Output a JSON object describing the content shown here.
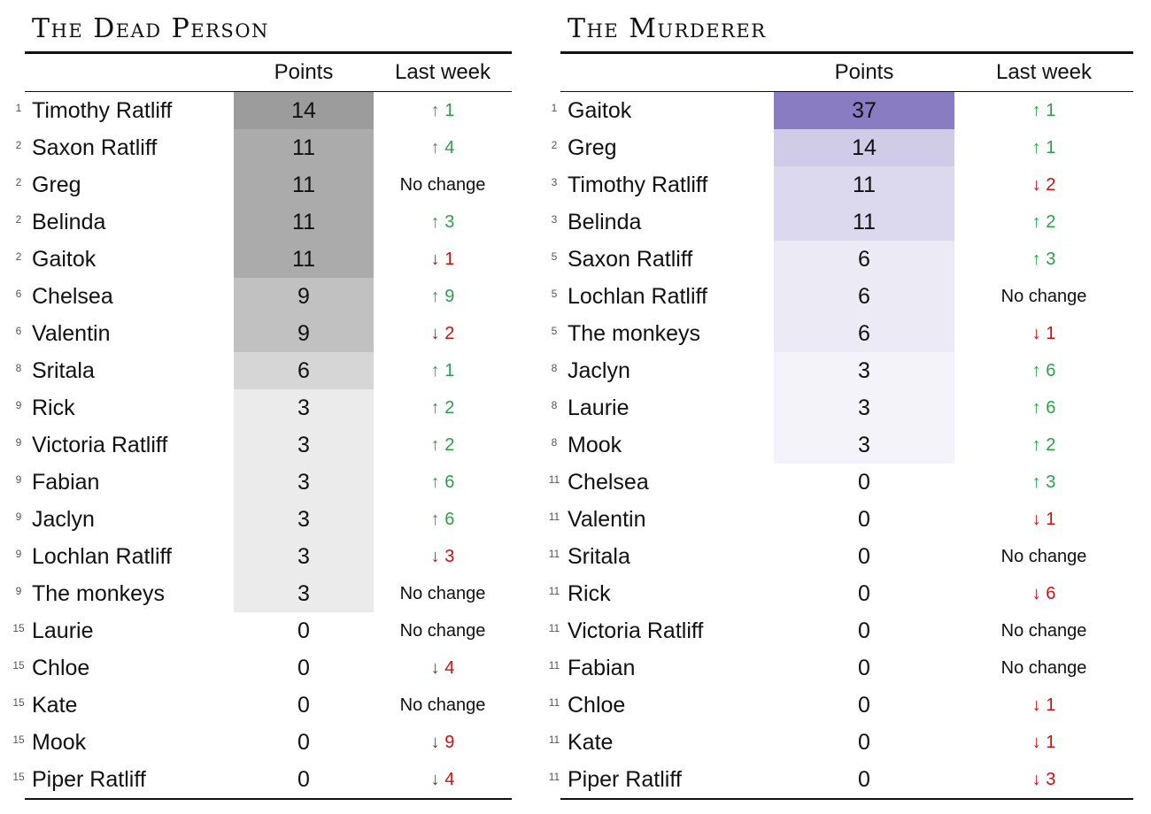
{
  "left": {
    "title": "The Dead Person",
    "col_points": "Points",
    "col_last_week": "Last week",
    "rows": [
      {
        "rank": "1",
        "name": "Timothy Ratliff",
        "points": "14",
        "change": "↑ 1",
        "dir": "up",
        "shade": "#9c9c9c"
      },
      {
        "rank": "2",
        "name": "Saxon Ratliff",
        "points": "11",
        "change": "↑ 4",
        "dir": "up",
        "shade": "#ababab"
      },
      {
        "rank": "2",
        "name": "Greg",
        "points": "11",
        "change": "No change",
        "dir": "same",
        "shade": "#ababab"
      },
      {
        "rank": "2",
        "name": "Belinda",
        "points": "11",
        "change": "↑ 3",
        "dir": "up",
        "shade": "#ababab"
      },
      {
        "rank": "2",
        "name": "Gaitok",
        "points": "11",
        "change": "↓ 1",
        "dir": "down",
        "shade": "#ababab"
      },
      {
        "rank": "6",
        "name": "Chelsea",
        "points": "9",
        "change": "↑ 9",
        "dir": "up",
        "shade": "#c1c1c1"
      },
      {
        "rank": "6",
        "name": "Valentin",
        "points": "9",
        "change": "↓ 2",
        "dir": "down",
        "shade": "#c1c1c1"
      },
      {
        "rank": "8",
        "name": "Sritala",
        "points": "6",
        "change": "↑ 1",
        "dir": "up",
        "shade": "#d6d6d6"
      },
      {
        "rank": "9",
        "name": "Rick",
        "points": "3",
        "change": "↑ 2",
        "dir": "up",
        "shade": "#ebebeb"
      },
      {
        "rank": "9",
        "name": "Victoria Ratliff",
        "points": "3",
        "change": "↑ 2",
        "dir": "up",
        "shade": "#ebebeb"
      },
      {
        "rank": "9",
        "name": "Fabian",
        "points": "3",
        "change": "↑ 6",
        "dir": "up",
        "shade": "#ebebeb"
      },
      {
        "rank": "9",
        "name": "Jaclyn",
        "points": "3",
        "change": "↑ 6",
        "dir": "up",
        "shade": "#ebebeb"
      },
      {
        "rank": "9",
        "name": "Lochlan Ratliff",
        "points": "3",
        "change": "↓ 3",
        "dir": "down",
        "shade": "#ebebeb"
      },
      {
        "rank": "9",
        "name": "The monkeys",
        "points": "3",
        "change": "No change",
        "dir": "same",
        "shade": "#ebebeb"
      },
      {
        "rank": "15",
        "name": "Laurie",
        "points": "0",
        "change": "No change",
        "dir": "same",
        "shade": "#ffffff"
      },
      {
        "rank": "15",
        "name": "Chloe",
        "points": "0",
        "change": "↓ 4",
        "dir": "down",
        "shade": "#ffffff"
      },
      {
        "rank": "15",
        "name": "Kate",
        "points": "0",
        "change": "No change",
        "dir": "same",
        "shade": "#ffffff"
      },
      {
        "rank": "15",
        "name": "Mook",
        "points": "0",
        "change": "↓ 9",
        "dir": "down",
        "shade": "#ffffff"
      },
      {
        "rank": "15",
        "name": "Piper Ratliff",
        "points": "0",
        "change": "↓ 4",
        "dir": "down",
        "shade": "#ffffff"
      }
    ]
  },
  "right": {
    "title": "The Murderer",
    "col_points": "Points",
    "col_last_week": "Last week",
    "rows": [
      {
        "rank": "1",
        "name": "Gaitok",
        "points": "37",
        "change": "↑ 1",
        "dir": "up",
        "shade": "#8a7cc2"
      },
      {
        "rank": "2",
        "name": "Greg",
        "points": "14",
        "change": "↑ 1",
        "dir": "up",
        "shade": "#d0cbe6"
      },
      {
        "rank": "3",
        "name": "Timothy Ratliff",
        "points": "11",
        "change": "↓ 2",
        "dir": "down",
        "shade": "#dcd8ed"
      },
      {
        "rank": "3",
        "name": "Belinda",
        "points": "11",
        "change": "↑ 2",
        "dir": "up",
        "shade": "#dcd8ed"
      },
      {
        "rank": "5",
        "name": "Saxon Ratliff",
        "points": "6",
        "change": "↑ 3",
        "dir": "up",
        "shade": "#eceaf5"
      },
      {
        "rank": "5",
        "name": "Lochlan Ratliff",
        "points": "6",
        "change": "No change",
        "dir": "same",
        "shade": "#eceaf5"
      },
      {
        "rank": "5",
        "name": "The monkeys",
        "points": "6",
        "change": "↓ 1",
        "dir": "down",
        "shade": "#eceaf5"
      },
      {
        "rank": "8",
        "name": "Jaclyn",
        "points": "3",
        "change": "↑ 6",
        "dir": "up",
        "shade": "#f4f3fa"
      },
      {
        "rank": "8",
        "name": "Laurie",
        "points": "3",
        "change": "↑ 6",
        "dir": "up",
        "shade": "#f4f3fa"
      },
      {
        "rank": "8",
        "name": "Mook",
        "points": "3",
        "change": "↑ 2",
        "dir": "up",
        "shade": "#f4f3fa"
      },
      {
        "rank": "11",
        "name": "Chelsea",
        "points": "0",
        "change": "↑ 3",
        "dir": "up",
        "shade": "#ffffff"
      },
      {
        "rank": "11",
        "name": "Valentin",
        "points": "0",
        "change": "↓ 1",
        "dir": "down",
        "shade": "#ffffff"
      },
      {
        "rank": "11",
        "name": "Sritala",
        "points": "0",
        "change": "No change",
        "dir": "same",
        "shade": "#ffffff"
      },
      {
        "rank": "11",
        "name": "Rick",
        "points": "0",
        "change": "↓ 6",
        "dir": "down",
        "shade": "#ffffff"
      },
      {
        "rank": "11",
        "name": "Victoria Ratliff",
        "points": "0",
        "change": "No change",
        "dir": "same",
        "shade": "#ffffff"
      },
      {
        "rank": "11",
        "name": "Fabian",
        "points": "0",
        "change": "No change",
        "dir": "same",
        "shade": "#ffffff"
      },
      {
        "rank": "11",
        "name": "Chloe",
        "points": "0",
        "change": "↓ 1",
        "dir": "down",
        "shade": "#ffffff"
      },
      {
        "rank": "11",
        "name": "Kate",
        "points": "0",
        "change": "↓ 1",
        "dir": "down",
        "shade": "#ffffff"
      },
      {
        "rank": "11",
        "name": "Piper Ratliff",
        "points": "0",
        "change": "↓ 3",
        "dir": "down",
        "shade": "#ffffff"
      }
    ]
  }
}
